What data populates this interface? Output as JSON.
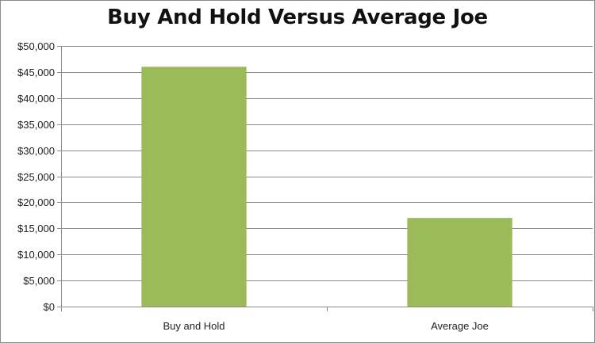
{
  "chart_data": {
    "type": "bar",
    "title": "Buy And Hold Versus Average Joe",
    "xlabel": "",
    "ylabel": "",
    "categories": [
      "Buy and Hold",
      "Average Joe"
    ],
    "values": [
      46000,
      17000
    ],
    "ylim": [
      0,
      50000
    ],
    "yticks": [
      0,
      5000,
      10000,
      15000,
      20000,
      25000,
      30000,
      35000,
      40000,
      45000,
      50000
    ],
    "ytick_labels": [
      "$0",
      "$5,000",
      "$10,000",
      "$15,000",
      "$20,000",
      "$25,000",
      "$30,000",
      "$35,000",
      "$40,000",
      "$45,000",
      "$50,000"
    ],
    "grid": true,
    "legend": "none",
    "bar_color": "#9bbb59"
  }
}
